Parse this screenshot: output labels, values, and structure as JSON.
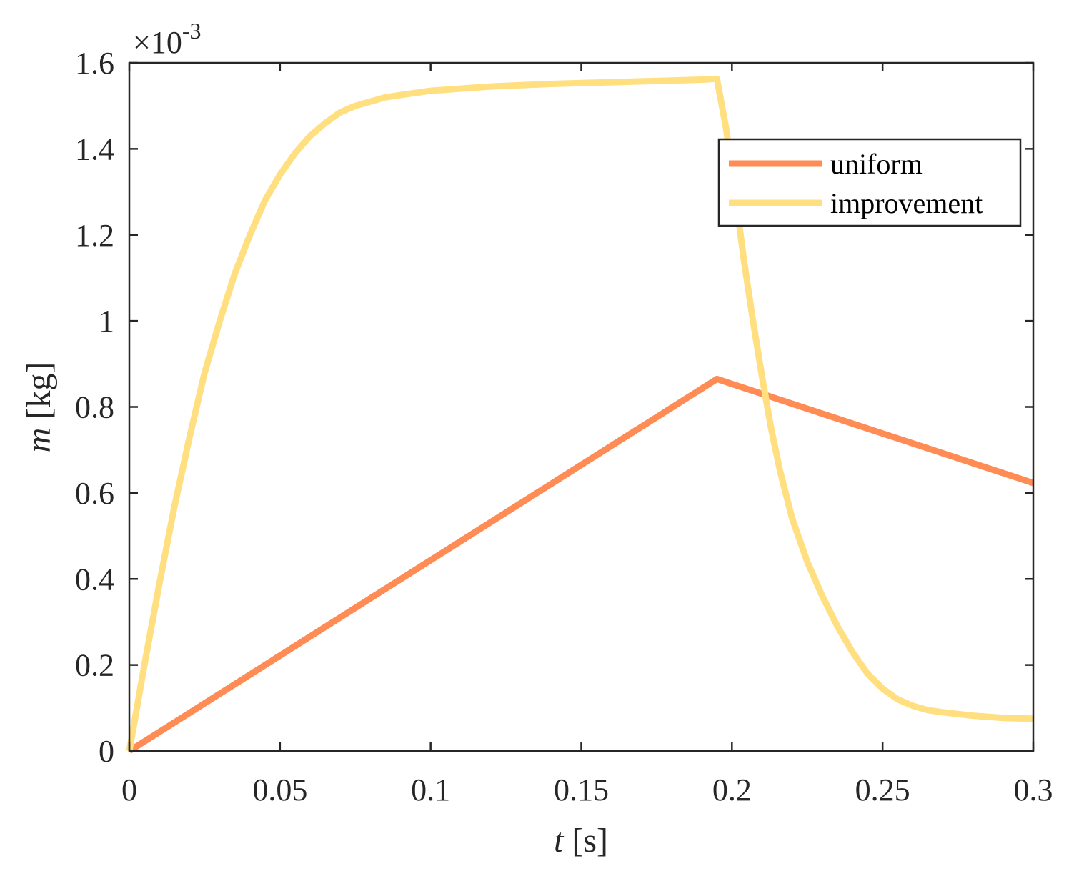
{
  "chart_data": {
    "type": "line",
    "xlabel_var": "t",
    "xlabel_unit": "[s]",
    "ylabel_var": "m",
    "ylabel_unit": "[kg]",
    "y_exponent_base": "×10",
    "y_exponent_power": "-3",
    "xlim": [
      0,
      0.3
    ],
    "ylim": [
      0,
      1.6
    ],
    "x_ticks": [
      0,
      0.05,
      0.1,
      0.15,
      0.2,
      0.25,
      0.3
    ],
    "x_tick_labels": [
      "0",
      "0.05",
      "0.1",
      "0.15",
      "0.2",
      "0.25",
      "0.3"
    ],
    "y_ticks": [
      0,
      0.2,
      0.4,
      0.6,
      0.8,
      1.0,
      1.2,
      1.4,
      1.6
    ],
    "y_tick_labels": [
      "0",
      "0.2",
      "0.4",
      "0.6",
      "0.8",
      "1",
      "1.2",
      "1.4",
      "1.6"
    ],
    "grid": false,
    "legend_position": "top-right",
    "series": [
      {
        "name": "uniform",
        "color": "#FF8C55",
        "x": [
          0,
          0.195,
          0.3
        ],
        "y": [
          0,
          0.865,
          0.623
        ]
      },
      {
        "name": "improvement",
        "color": "#FFDF80",
        "x": [
          0,
          0.005,
          0.01,
          0.015,
          0.02,
          0.025,
          0.03,
          0.035,
          0.04,
          0.045,
          0.05,
          0.055,
          0.06,
          0.065,
          0.07,
          0.075,
          0.08,
          0.085,
          0.09,
          0.095,
          0.1,
          0.11,
          0.12,
          0.13,
          0.14,
          0.15,
          0.16,
          0.17,
          0.18,
          0.19,
          0.195,
          0.198,
          0.201,
          0.204,
          0.207,
          0.21,
          0.213,
          0.216,
          0.22,
          0.225,
          0.23,
          0.235,
          0.24,
          0.245,
          0.25,
          0.255,
          0.26,
          0.265,
          0.27,
          0.28,
          0.29,
          0.3
        ],
        "y": [
          0,
          0.2,
          0.39,
          0.57,
          0.73,
          0.88,
          1.0,
          1.11,
          1.2,
          1.28,
          1.34,
          1.39,
          1.43,
          1.46,
          1.485,
          1.5,
          1.51,
          1.52,
          1.525,
          1.53,
          1.535,
          1.54,
          1.545,
          1.548,
          1.551,
          1.553,
          1.555,
          1.557,
          1.559,
          1.561,
          1.563,
          1.45,
          1.3,
          1.14,
          1.0,
          0.87,
          0.75,
          0.65,
          0.54,
          0.44,
          0.36,
          0.29,
          0.23,
          0.18,
          0.145,
          0.12,
          0.105,
          0.095,
          0.09,
          0.082,
          0.077,
          0.075
        ]
      }
    ]
  }
}
